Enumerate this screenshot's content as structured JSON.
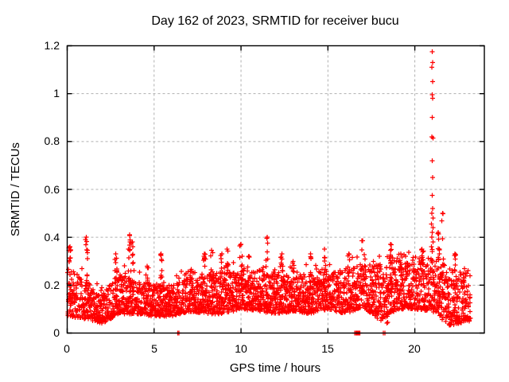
{
  "title": "Day 162 of 2023, SRMTID for receiver bucu",
  "chart_data": {
    "type": "scatter",
    "title": "Day 162 of 2023, SRMTID for receiver bucu",
    "xlabel": "GPS time / hours",
    "ylabel": "SRMTID / TECUs",
    "xlim": [
      0,
      24
    ],
    "ylim": [
      0,
      1.2
    ],
    "xticks": [
      0,
      5,
      10,
      15,
      20
    ],
    "yticks": [
      0,
      0.2,
      0.4,
      0.6,
      0.8,
      1,
      1.2
    ],
    "xtick_labels": [
      "0",
      "5",
      "10",
      "15",
      "20"
    ],
    "ytick_labels": [
      "0",
      "0.2",
      "0.4",
      "0.6",
      "0.8",
      "1",
      "1.2"
    ],
    "grid": true,
    "legend": "none",
    "marker": "plus",
    "marker_color": "#ff0000",
    "grid_color": "#b0b0b0",
    "border_color": "#000000",
    "time_range": [
      0.03,
      23.2
    ],
    "baseline_step": 0.02,
    "seed": 162,
    "band_hourly_lo_hi": [
      [
        0,
        0.07,
        0.28
      ],
      [
        1,
        0.06,
        0.22
      ],
      [
        2,
        0.04,
        0.16
      ],
      [
        3,
        0.08,
        0.25
      ],
      [
        4,
        0.08,
        0.22
      ],
      [
        5,
        0.07,
        0.21
      ],
      [
        6,
        0.07,
        0.2
      ],
      [
        7,
        0.09,
        0.24
      ],
      [
        8,
        0.08,
        0.25
      ],
      [
        9,
        0.08,
        0.25
      ],
      [
        10,
        0.1,
        0.26
      ],
      [
        11,
        0.09,
        0.27
      ],
      [
        12,
        0.08,
        0.25
      ],
      [
        13,
        0.09,
        0.24
      ],
      [
        14,
        0.08,
        0.25
      ],
      [
        15,
        0.1,
        0.26
      ],
      [
        16,
        0.08,
        0.27
      ],
      [
        17,
        0.11,
        0.29
      ],
      [
        18,
        0.05,
        0.29
      ],
      [
        19,
        0.1,
        0.3
      ],
      [
        20,
        0.1,
        0.31
      ],
      [
        21,
        0.09,
        0.32
      ],
      [
        22,
        0.03,
        0.27
      ],
      [
        23,
        0.05,
        0.25
      ]
    ],
    "spike_clusters_x_ymax": [
      [
        0.15,
        0.36
      ],
      [
        1.1,
        0.4
      ],
      [
        2.8,
        0.33
      ],
      [
        3.6,
        0.41
      ],
      [
        3.75,
        0.38
      ],
      [
        4.6,
        0.28
      ],
      [
        5.4,
        0.33
      ],
      [
        7.1,
        0.26
      ],
      [
        7.9,
        0.33
      ],
      [
        8.3,
        0.345
      ],
      [
        8.9,
        0.33
      ],
      [
        9.2,
        0.35
      ],
      [
        10.0,
        0.37
      ],
      [
        10.45,
        0.32
      ],
      [
        11.5,
        0.4
      ],
      [
        12.35,
        0.33
      ],
      [
        13.0,
        0.3
      ],
      [
        14.0,
        0.33
      ],
      [
        14.8,
        0.35
      ],
      [
        16.2,
        0.33
      ],
      [
        17.0,
        0.385
      ],
      [
        18.6,
        0.37
      ],
      [
        19.2,
        0.33
      ],
      [
        20.4,
        0.35
      ],
      [
        21.35,
        0.42
      ],
      [
        21.6,
        0.5
      ],
      [
        22.3,
        0.33
      ],
      [
        22.85,
        0.27
      ]
    ],
    "main_spike_points": [
      [
        21.0,
        1.175
      ],
      [
        21.02,
        1.13
      ],
      [
        20.99,
        1.11
      ],
      [
        21.03,
        1.05
      ],
      [
        21.0,
        0.995
      ],
      [
        21.02,
        0.98
      ],
      [
        21.0,
        0.9
      ],
      [
        20.99,
        0.82
      ],
      [
        21.04,
        0.815
      ],
      [
        21.0,
        0.72
      ],
      [
        21.02,
        0.65
      ],
      [
        21.0,
        0.575
      ],
      [
        21.03,
        0.52
      ],
      [
        20.97,
        0.5
      ],
      [
        21.05,
        0.48
      ],
      [
        20.96,
        0.455
      ],
      [
        21.06,
        0.44
      ],
      [
        21.0,
        0.42
      ],
      [
        20.99,
        0.4
      ],
      [
        21.05,
        0.38
      ],
      [
        20.95,
        0.36
      ],
      [
        21.0,
        0.34
      ]
    ],
    "zero_value_x": [
      6.35,
      6.43,
      16.55,
      16.6,
      16.64,
      16.68,
      16.72,
      16.76,
      16.8,
      16.84,
      18.2,
      18.28
    ],
    "low_tails_x_ylo_yhi": [
      [
        18.42,
        0.03,
        0.12
      ],
      [
        22.45,
        0.03,
        0.1
      ]
    ]
  }
}
